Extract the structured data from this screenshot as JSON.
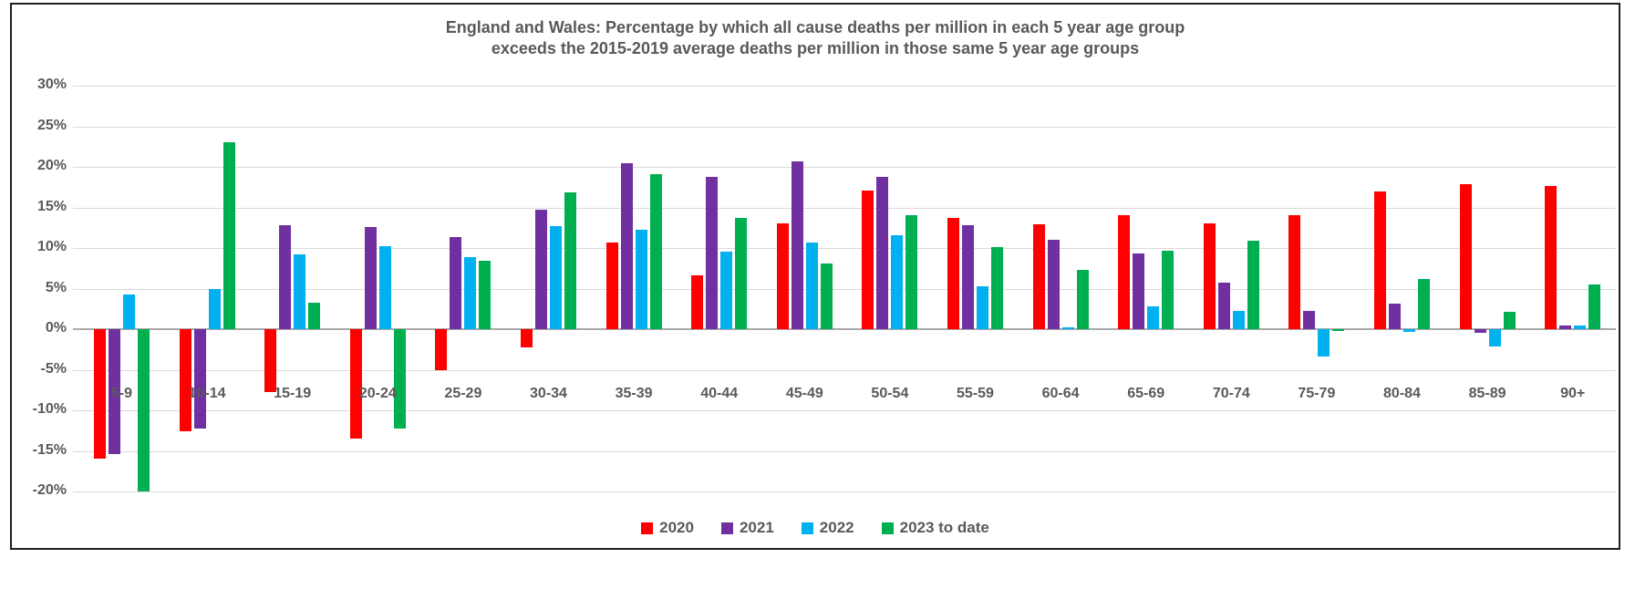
{
  "title": {
    "line1": "England and Wales: Percentage by which all cause deaths per million in each 5 year age group",
    "line2": "exceeds the 2015-2019 average deaths per million in those same 5 year age groups"
  },
  "chart_data": {
    "type": "bar",
    "title": "England and Wales: Percentage by which all cause deaths per million in each 5 year age group exceeds the 2015-2019 average deaths per million in those same 5 year age groups",
    "categories": [
      "5-9",
      "10-14",
      "15-19",
      "20-24",
      "25-29",
      "30-34",
      "35-39",
      "40-44",
      "45-49",
      "50-54",
      "55-59",
      "60-64",
      "65-69",
      "70-74",
      "75-79",
      "80-84",
      "85-89",
      "90+"
    ],
    "series": [
      {
        "name": "2020",
        "color": "#FF0000",
        "values": [
          -16.0,
          -12.6,
          -7.7,
          -13.5,
          -5.0,
          -2.2,
          10.7,
          6.6,
          13.0,
          17.1,
          13.7,
          12.9,
          14.1,
          13.0,
          14.1,
          17.0,
          17.9,
          17.6
        ]
      },
      {
        "name": "2021",
        "color": "#7030A0",
        "values": [
          -15.4,
          -12.2,
          12.8,
          12.6,
          11.4,
          14.7,
          20.5,
          18.8,
          20.7,
          18.8,
          12.8,
          11.0,
          9.3,
          5.7,
          2.2,
          3.1,
          -0.5,
          0.4
        ]
      },
      {
        "name": "2022",
        "color": "#00B0F0",
        "values": [
          4.3,
          5.0,
          9.2,
          10.2,
          8.9,
          12.7,
          12.2,
          9.6,
          10.7,
          11.6,
          5.3,
          0.2,
          2.8,
          2.2,
          -3.4,
          -0.3,
          -2.1,
          0.5
        ]
      },
      {
        "name": "2023 to date",
        "color": "#00B050",
        "values": [
          -20.0,
          23.0,
          3.3,
          -12.2,
          8.4,
          16.9,
          19.1,
          13.7,
          8.1,
          14.0,
          10.1,
          7.3,
          9.7,
          10.9,
          -0.2,
          6.2,
          2.1,
          5.5
        ]
      }
    ],
    "y_tick_labels": [
      "30%",
      "25%",
      "20%",
      "15%",
      "10%",
      "5%",
      "0%",
      "-5%",
      "-10%",
      "-15%",
      "-20%"
    ],
    "y_tick_values": [
      30,
      25,
      20,
      15,
      10,
      5,
      0,
      -5,
      -10,
      -15,
      -20
    ],
    "ylim": [
      -20,
      30
    ],
    "grid": true,
    "legend_position": "bottom"
  },
  "colors": {
    "text": "#595959",
    "gridline": "#D9D9D9",
    "zero_line": "#A9A9A9",
    "border": "#1F1F1F",
    "background": "#FFFFFF"
  }
}
